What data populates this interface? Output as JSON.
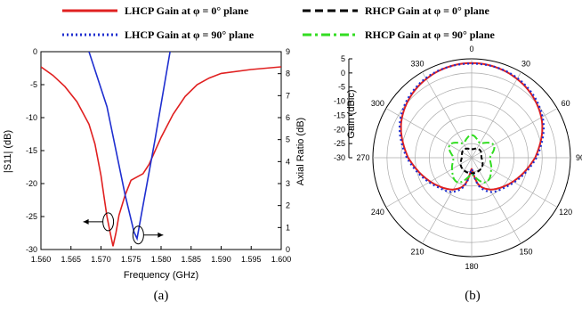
{
  "legend": {
    "lhcp0": "LHCP Gain at φ = 0° plane",
    "rhcp0": "RHCP Gain at φ = 0° plane",
    "lhcp90": "LHCP Gain at φ = 90° plane",
    "rhcp90": "RHCP Gain at φ = 90° plane",
    "colors": {
      "lhcp0": "#e02020",
      "rhcp0": "#000000",
      "lhcp90": "#1f2fd0",
      "rhcp90": "#33dd22"
    }
  },
  "panel_labels": {
    "a": "(a)",
    "b": "(b)"
  },
  "chart_data": [
    {
      "type": "line",
      "xlabel": "Frequency (GHz)",
      "ylabel": "|S11| (dB)",
      "y2label": "Axial Ratio (dB)",
      "xlim": [
        1.56,
        1.6
      ],
      "ylim": [
        -30,
        0
      ],
      "y2lim": [
        0,
        9
      ],
      "xticks": [
        "1.560",
        "1.565",
        "1.570",
        "1.575",
        "1.580",
        "1.585",
        "1.590",
        "1.595",
        "1.600"
      ],
      "yticks": [
        "0",
        "-5",
        "-10",
        "-15",
        "-20",
        "-25",
        "-30"
      ],
      "y2ticks": [
        "0",
        "1",
        "2",
        "3",
        "4",
        "5",
        "6",
        "7",
        "8",
        "9"
      ],
      "series": [
        {
          "axis": "left",
          "color": "#e02020",
          "x": [
            1.56,
            1.562,
            1.564,
            1.566,
            1.568,
            1.569,
            1.57,
            1.5705,
            1.571,
            1.5715,
            1.572,
            1.5725,
            1.573,
            1.574,
            1.575,
            1.576,
            1.577,
            1.578,
            1.58,
            1.582,
            1.584,
            1.586,
            1.588,
            1.59,
            1.595,
            1.6
          ],
          "y": [
            -2.3,
            -3.6,
            -5.3,
            -7.6,
            -11,
            -14,
            -18.8,
            -22,
            -25,
            -27.3,
            -29.5,
            -27.4,
            -24.8,
            -21.8,
            -19.5,
            -19,
            -18.5,
            -17.1,
            -13,
            -9.5,
            -6.8,
            -5,
            -4,
            -3.3,
            -2.7,
            -2.3
          ]
        },
        {
          "axis": "right",
          "color": "#1f2fd0",
          "x": [
            1.568,
            1.571,
            1.574,
            1.5755,
            1.576,
            1.577,
            1.579,
            1.5815
          ],
          "y": [
            9,
            6.5,
            2.5,
            0.8,
            0.5,
            2,
            5,
            9
          ]
        }
      ],
      "annotations": [
        {
          "type": "ellipse",
          "x": 1.5712,
          "y": -25.8,
          "arrow": "left"
        },
        {
          "type": "ellipse",
          "x": 1.5762,
          "y": -27.8,
          "arrow": "right"
        }
      ]
    },
    {
      "type": "polar",
      "ylabel": "Gain (dBic)",
      "rlim": [
        -30,
        5
      ],
      "rticks": [
        "5",
        "0",
        "-5",
        "-10",
        "-15",
        "-20",
        "-25",
        "-30"
      ],
      "angle_ticks": [
        "0",
        "30",
        "60",
        "90",
        "120",
        "150",
        "180",
        "210",
        "240",
        "270",
        "300",
        "330"
      ],
      "series": [
        {
          "legend": "lhcp0",
          "color": "#e02020",
          "theta": [
            0,
            30,
            60,
            90,
            110,
            130,
            150,
            165,
            180,
            195,
            210,
            230,
            250,
            270,
            300,
            330
          ],
          "r": [
            3.5,
            2.2,
            -1.5,
            -7.5,
            -11.5,
            -14.5,
            -17,
            -20,
            -26,
            -20,
            -17,
            -14.5,
            -11.5,
            -7.5,
            -1.5,
            2.2
          ]
        },
        {
          "legend": "lhcp90",
          "color": "#1f2fd0",
          "theta": [
            0,
            30,
            60,
            90,
            110,
            130,
            150,
            165,
            180,
            195,
            210,
            230,
            250,
            270,
            300,
            330
          ],
          "r": [
            3.3,
            2.5,
            -1,
            -7,
            -11,
            -14,
            -16,
            -19.5,
            -26,
            -19.5,
            -16,
            -14,
            -11,
            -7,
            -1,
            2.5
          ]
        },
        {
          "legend": "rhcp0",
          "color": "#000000",
          "theta": [
            0,
            45,
            90,
            135,
            180,
            225,
            270,
            315
          ],
          "r": [
            -27,
            -26,
            -26.5,
            -25,
            -24.5,
            -25,
            -26.5,
            -26
          ]
        },
        {
          "legend": "rhcp90",
          "color": "#33dd22",
          "theta": [
            0,
            30,
            60,
            90,
            120,
            150,
            180,
            210,
            240,
            270,
            300,
            330
          ],
          "r": [
            -22,
            -24,
            -21,
            -23.5,
            -22,
            -20,
            -24,
            -20,
            -22,
            -23.5,
            -21,
            -24
          ]
        }
      ]
    }
  ]
}
